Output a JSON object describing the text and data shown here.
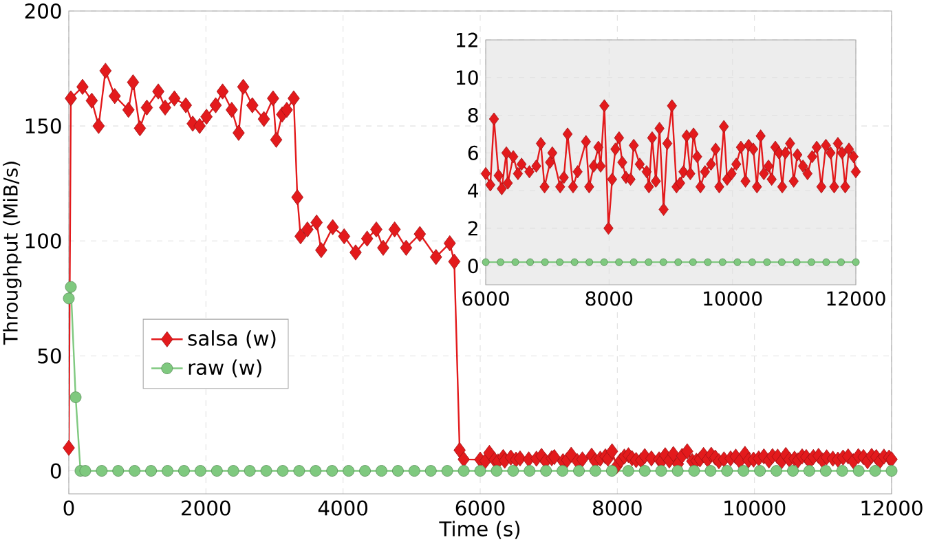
{
  "chart_data": [
    {
      "type": "line",
      "xlabel": "Time (s)",
      "ylabel": "Throughput (MiB/s)",
      "xlim": [
        0,
        12000
      ],
      "ylim": [
        -10,
        200
      ],
      "xticks": [
        0,
        2000,
        4000,
        6000,
        8000,
        10000,
        12000
      ],
      "yticks": [
        0,
        50,
        100,
        150,
        200
      ],
      "grid": true,
      "legend": "center left",
      "line_style": "solid",
      "series": [
        {
          "name": "salsa (w)",
          "color": "#e31a1c",
          "marker": "diamond",
          "x": [
            0,
            30,
            200,
            335,
            435,
            535,
            670,
            870,
            937,
            1037,
            1138,
            1305,
            1405,
            1540,
            1707,
            1807,
            1908,
            2008,
            2142,
            2243,
            2376,
            2477,
            2544,
            2677,
            2845,
            2979,
            3025,
            3112,
            3179,
            3280,
            3333,
            3380,
            3480,
            3614,
            3681,
            3849,
            4016,
            4183,
            4351,
            4485,
            4585,
            4752,
            4920,
            5120,
            5355,
            5556,
            5622,
            5700,
            5760,
            6000,
            6075,
            6134,
            6209,
            6260,
            6335,
            6358,
            6447,
            6522,
            6581,
            6708,
            6820,
            6894,
            6954,
            7043,
            7080,
            7207,
            7267,
            7327,
            7416,
            7490,
            7625,
            7677,
            7751,
            7826,
            7863,
            7923,
            7990,
            8050,
            8102,
            8162,
            8214,
            8274,
            8348,
            8400,
            8497,
            8609,
            8646,
            8698,
            8758,
            8817,
            8884,
            8944,
            9019,
            9093,
            9153,
            9205,
            9257,
            9317,
            9369,
            9428,
            9481,
            9555,
            9652,
            9727,
            9786,
            9861,
            9913,
            9987,
            10062,
            10137,
            10211,
            10263,
            10338,
            10397,
            10457,
            10509,
            10584,
            10636,
            10695,
            10755,
            10807,
            10859,
            10934,
            10993,
            11053,
            11143,
            11217,
            11292,
            11366,
            11441,
            11515,
            11590,
            11649,
            11709,
            11776,
            11828,
            11888,
            11963,
            12000
          ],
          "values": [
            10,
            162,
            167,
            161,
            150,
            174,
            163,
            157,
            169,
            149,
            158,
            165,
            158,
            162,
            159,
            151,
            150,
            154,
            159,
            165,
            157,
            147,
            167,
            159,
            153,
            162,
            144,
            155,
            157,
            162,
            119,
            102,
            105,
            108,
            96,
            106,
            102,
            95,
            101,
            105,
            97,
            105,
            97,
            103,
            93,
            99,
            91,
            9,
            5,
            4.9,
            4.3,
            7.8,
            4.8,
            4.1,
            6.0,
            4.4,
            5.8,
            4.9,
            5.4,
            5.0,
            5.3,
            6.5,
            4.2,
            5.5,
            6.0,
            4.2,
            4.7,
            7.0,
            4.2,
            5.0,
            6.6,
            4.2,
            5.3,
            6.3,
            5.3,
            8.5,
            2.0,
            4.6,
            6.2,
            6.8,
            5.5,
            4.7,
            4.6,
            6.4,
            5.4,
            5.0,
            4.2,
            6.8,
            4.5,
            7.3,
            3.0,
            6.5,
            8.5,
            4.2,
            4.4,
            5.0,
            6.9,
            4.9,
            7.0,
            5.8,
            4.2,
            5.0,
            5.4,
            6.2,
            4.2,
            7.4,
            4.6,
            4.9,
            5.4,
            6.3,
            4.5,
            6.4,
            6.2,
            4.2,
            6.9,
            4.9,
            5.3,
            4.6,
            6.3,
            6.0,
            4.2,
            6.0,
            6.5,
            4.5,
            5.9,
            5.3,
            4.9,
            5.8,
            6.3,
            4.2,
            6.4,
            6.0,
            4.2,
            6.5,
            6.0,
            4.2,
            6.2,
            5.8,
            5.0
          ]
        },
        {
          "name": "raw (w)",
          "color": "#7fc97f",
          "marker": "circle",
          "x": [
            0,
            30,
            100,
            170,
            240,
            480,
            720,
            960,
            1200,
            1440,
            1680,
            1920,
            2160,
            2400,
            2640,
            2880,
            3120,
            3360,
            3600,
            3840,
            4080,
            4320,
            4560,
            4800,
            5040,
            5280,
            5520,
            5760,
            6000,
            6240,
            6480,
            6720,
            6960,
            7200,
            7440,
            7680,
            7920,
            8160,
            8400,
            8640,
            8880,
            9120,
            9360,
            9600,
            9840,
            10080,
            10320,
            10560,
            10800,
            11040,
            11280,
            11520,
            11760,
            12000
          ],
          "values": [
            75,
            80,
            32,
            0,
            0,
            0,
            0,
            0,
            0,
            0,
            0,
            0,
            0,
            0,
            0,
            0,
            0,
            0,
            0,
            0,
            0,
            0,
            0,
            0,
            0,
            0,
            0,
            0,
            0,
            0,
            0,
            0,
            0,
            0,
            0,
            0,
            0,
            0,
            0,
            0,
            0,
            0,
            0,
            0,
            0,
            0,
            0,
            0,
            0,
            0,
            0,
            0,
            0,
            0
          ]
        }
      ]
    },
    {
      "type": "line",
      "xlim": [
        6000,
        12000
      ],
      "ylim": [
        -1,
        12
      ],
      "xticks": [
        6000,
        8000,
        10000,
        12000
      ],
      "yticks": [
        0,
        2,
        4,
        6,
        8,
        10,
        12
      ],
      "grid": true,
      "line_style": "solid",
      "series": [
        {
          "color": "#e31a1c",
          "marker": "diamond",
          "x": [
            6000,
            6075,
            6134,
            6209,
            6260,
            6335,
            6358,
            6447,
            6522,
            6581,
            6708,
            6820,
            6894,
            6954,
            7043,
            7080,
            7207,
            7267,
            7327,
            7416,
            7490,
            7625,
            7677,
            7751,
            7826,
            7863,
            7923,
            7990,
            8050,
            8102,
            8162,
            8214,
            8274,
            8348,
            8400,
            8497,
            8609,
            8646,
            8698,
            8758,
            8817,
            8884,
            8944,
            9019,
            9093,
            9153,
            9205,
            9257,
            9317,
            9369,
            9428,
            9481,
            9555,
            9652,
            9727,
            9786,
            9861,
            9913,
            9987,
            10062,
            10137,
            10211,
            10263,
            10338,
            10397,
            10457,
            10509,
            10584,
            10636,
            10695,
            10755,
            10807,
            10859,
            10934,
            10993,
            11053,
            11143,
            11217,
            11292,
            11366,
            11441,
            11515,
            11590,
            11649,
            11709,
            11776,
            11828,
            11888,
            11963,
            12000
          ],
          "values": [
            4.9,
            4.3,
            7.8,
            4.8,
            4.1,
            6.0,
            4.4,
            5.8,
            4.9,
            5.4,
            5.0,
            5.3,
            6.5,
            4.2,
            5.5,
            6.0,
            4.2,
            4.7,
            7.0,
            4.2,
            5.0,
            6.6,
            4.2,
            5.3,
            6.3,
            5.3,
            8.5,
            2.0,
            4.6,
            6.2,
            6.8,
            5.5,
            4.7,
            4.6,
            6.4,
            5.4,
            5.0,
            4.2,
            6.8,
            4.5,
            7.3,
            3.0,
            6.5,
            8.5,
            4.2,
            4.4,
            5.0,
            6.9,
            4.9,
            7.0,
            5.8,
            4.2,
            5.0,
            5.4,
            6.2,
            4.2,
            7.4,
            4.6,
            4.9,
            5.4,
            6.3,
            4.5,
            6.4,
            6.2,
            4.2,
            6.9,
            4.9,
            5.3,
            4.6,
            6.3,
            6.0,
            4.2,
            6.0,
            6.5,
            4.5,
            5.9,
            5.3,
            4.9,
            5.8,
            6.3,
            4.2,
            6.4,
            6.0,
            4.2,
            6.5,
            6.0,
            4.2,
            6.2,
            5.8,
            5.0
          ]
        },
        {
          "color": "#7fc97f",
          "marker": "circle",
          "x": [
            6000,
            6240,
            6480,
            6720,
            6960,
            7200,
            7440,
            7680,
            7920,
            8160,
            8400,
            8640,
            8880,
            9120,
            9360,
            9600,
            9840,
            10080,
            10320,
            10560,
            10800,
            11040,
            11280,
            11520,
            11760,
            12000
          ],
          "values": [
            0.2,
            0.2,
            0.2,
            0.2,
            0.2,
            0.2,
            0.2,
            0.2,
            0.2,
            0.2,
            0.2,
            0.2,
            0.2,
            0.2,
            0.2,
            0.2,
            0.2,
            0.2,
            0.2,
            0.2,
            0.2,
            0.2,
            0.2,
            0.2,
            0.2,
            0.2
          ]
        }
      ]
    }
  ]
}
